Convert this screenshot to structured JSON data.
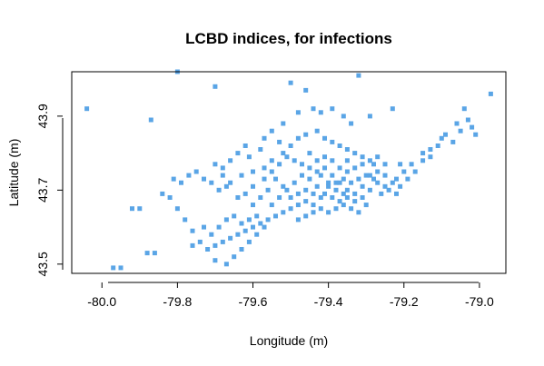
{
  "chart_data": {
    "type": "scatter",
    "title": "LCBD indices, for infections",
    "xlabel": "Longitude (m)",
    "ylabel": "Latitude (m)",
    "xlim": [
      -80.08,
      -78.93
    ],
    "ylim": [
      43.475,
      44.02
    ],
    "x_ticks": [
      -80.0,
      -79.8,
      -79.6,
      -79.4,
      -79.2,
      -79.0
    ],
    "x_tick_labels": [
      "-80.0",
      "-79.8",
      "-79.6",
      "-79.4",
      "-79.2",
      "-79.0"
    ],
    "y_ticks": [
      43.5,
      43.7,
      43.9
    ],
    "y_tick_labels": [
      "43.5",
      "43.7",
      "43.9"
    ],
    "marker": "square",
    "color": "#5aa5e6",
    "grid": false,
    "points": [
      [
        -79.8,
        44.02
      ],
      [
        -79.46,
        43.97
      ],
      [
        -79.5,
        43.99
      ],
      [
        -79.32,
        44.01
      ],
      [
        -79.7,
        43.98
      ],
      [
        -80.04,
        43.92
      ],
      [
        -79.87,
        43.89
      ],
      [
        -79.52,
        43.88
      ],
      [
        -79.48,
        43.91
      ],
      [
        -79.44,
        43.92
      ],
      [
        -79.42,
        43.91
      ],
      [
        -79.39,
        43.92
      ],
      [
        -79.36,
        43.9
      ],
      [
        -79.34,
        43.88
      ],
      [
        -79.29,
        43.9
      ],
      [
        -79.23,
        43.92
      ],
      [
        -79.04,
        43.92
      ],
      [
        -79.03,
        43.89
      ],
      [
        -79.02,
        43.87
      ],
      [
        -79.01,
        43.85
      ],
      [
        -78.97,
        43.96
      ],
      [
        -79.09,
        43.85
      ],
      [
        -79.1,
        43.84
      ],
      [
        -79.13,
        43.81
      ],
      [
        -79.15,
        43.8
      ],
      [
        -79.18,
        43.77
      ],
      [
        -79.2,
        43.75
      ],
      [
        -79.22,
        43.73
      ],
      [
        -79.21,
        43.77
      ],
      [
        -79.25,
        43.77
      ],
      [
        -79.27,
        43.75
      ],
      [
        -79.29,
        43.74
      ],
      [
        -79.28,
        43.77
      ],
      [
        -79.31,
        43.79
      ],
      [
        -79.33,
        43.8
      ],
      [
        -79.35,
        43.81
      ],
      [
        -79.37,
        43.82
      ],
      [
        -79.39,
        43.83
      ],
      [
        -79.41,
        43.84
      ],
      [
        -79.43,
        43.86
      ],
      [
        -79.46,
        43.85
      ],
      [
        -79.48,
        43.84
      ],
      [
        -79.5,
        43.82
      ],
      [
        -79.52,
        43.8
      ],
      [
        -79.55,
        43.78
      ],
      [
        -79.57,
        43.76
      ],
      [
        -79.6,
        43.75
      ],
      [
        -79.63,
        43.74
      ],
      [
        -79.66,
        43.72
      ],
      [
        -79.61,
        43.79
      ],
      [
        -79.58,
        43.81
      ],
      [
        -79.53,
        43.83
      ],
      [
        -79.45,
        43.8
      ],
      [
        -79.43,
        43.78
      ],
      [
        -79.41,
        43.76
      ],
      [
        -79.39,
        43.74
      ],
      [
        -79.37,
        43.72
      ],
      [
        -79.35,
        43.7
      ],
      [
        -79.33,
        43.69
      ],
      [
        -79.31,
        43.71
      ],
      [
        -79.29,
        43.7
      ],
      [
        -79.27,
        43.72
      ],
      [
        -79.25,
        43.71
      ],
      [
        -79.3,
        43.66
      ],
      [
        -79.32,
        43.64
      ],
      [
        -79.34,
        43.65
      ],
      [
        -79.36,
        43.66
      ],
      [
        -79.38,
        43.65
      ],
      [
        -79.4,
        43.64
      ],
      [
        -79.42,
        43.65
      ],
      [
        -79.44,
        43.66
      ],
      [
        -79.46,
        43.67
      ],
      [
        -79.48,
        43.66
      ],
      [
        -79.5,
        43.65
      ],
      [
        -79.52,
        43.64
      ],
      [
        -79.54,
        43.63
      ],
      [
        -79.56,
        43.62
      ],
      [
        -79.58,
        43.61
      ],
      [
        -79.6,
        43.6
      ],
      [
        -79.62,
        43.59
      ],
      [
        -79.64,
        43.58
      ],
      [
        -79.66,
        43.57
      ],
      [
        -79.68,
        43.56
      ],
      [
        -79.7,
        43.55
      ],
      [
        -79.72,
        43.54
      ],
      [
        -79.74,
        43.56
      ],
      [
        -79.76,
        43.55
      ],
      [
        -79.7,
        43.51
      ],
      [
        -79.67,
        43.5
      ],
      [
        -79.65,
        43.52
      ],
      [
        -79.63,
        43.54
      ],
      [
        -79.61,
        43.56
      ],
      [
        -79.59,
        43.58
      ],
      [
        -79.57,
        43.6
      ],
      [
        -79.55,
        43.66
      ],
      [
        -79.53,
        43.68
      ],
      [
        -79.51,
        43.7
      ],
      [
        -79.49,
        43.72
      ],
      [
        -79.47,
        43.74
      ],
      [
        -79.45,
        43.73
      ],
      [
        -79.43,
        43.71
      ],
      [
        -79.41,
        43.69
      ],
      [
        -79.39,
        43.68
      ],
      [
        -79.37,
        43.67
      ],
      [
        -79.35,
        43.68
      ],
      [
        -79.33,
        43.67
      ],
      [
        -79.31,
        43.68
      ],
      [
        -79.42,
        43.74
      ],
      [
        -79.4,
        43.72
      ],
      [
        -79.38,
        43.7
      ],
      [
        -79.36,
        43.69
      ],
      [
        -79.34,
        43.72
      ],
      [
        -79.32,
        43.73
      ],
      [
        -79.3,
        43.74
      ],
      [
        -79.28,
        43.73
      ],
      [
        -79.26,
        43.69
      ],
      [
        -79.24,
        43.7
      ],
      [
        -79.22,
        43.69
      ],
      [
        -79.46,
        43.7
      ],
      [
        -79.44,
        43.69
      ],
      [
        -79.48,
        43.69
      ],
      [
        -79.5,
        43.68
      ],
      [
        -79.52,
        43.71
      ],
      [
        -79.54,
        43.73
      ],
      [
        -79.56,
        43.7
      ],
      [
        -79.58,
        43.68
      ],
      [
        -79.6,
        43.66
      ],
      [
        -79.62,
        43.69
      ],
      [
        -79.64,
        43.68
      ],
      [
        -79.6,
        43.71
      ],
      [
        -79.57,
        43.73
      ],
      [
        -79.55,
        43.75
      ],
      [
        -79.53,
        43.77
      ],
      [
        -79.51,
        43.79
      ],
      [
        -79.49,
        43.78
      ],
      [
        -79.47,
        43.77
      ],
      [
        -79.45,
        43.76
      ],
      [
        -79.43,
        43.75
      ],
      [
        -79.41,
        43.79
      ],
      [
        -79.39,
        43.78
      ],
      [
        -79.37,
        43.76
      ],
      [
        -79.35,
        43.75
      ],
      [
        -79.33,
        43.76
      ],
      [
        -79.31,
        43.77
      ],
      [
        -79.29,
        43.78
      ],
      [
        -79.27,
        43.79
      ],
      [
        -79.35,
        43.78
      ],
      [
        -79.36,
        43.73
      ],
      [
        -79.38,
        43.72
      ],
      [
        -79.4,
        43.71
      ],
      [
        -79.42,
        43.68
      ],
      [
        -79.44,
        43.64
      ],
      [
        -79.46,
        43.63
      ],
      [
        -79.48,
        43.62
      ],
      [
        -79.59,
        43.63
      ],
      [
        -79.61,
        43.62
      ],
      [
        -79.63,
        43.61
      ],
      [
        -79.65,
        43.63
      ],
      [
        -79.67,
        43.62
      ],
      [
        -79.69,
        43.6
      ],
      [
        -79.71,
        43.58
      ],
      [
        -79.73,
        43.6
      ],
      [
        -79.76,
        43.59
      ],
      [
        -79.78,
        43.62
      ],
      [
        -79.8,
        43.65
      ],
      [
        -79.82,
        43.68
      ],
      [
        -79.84,
        43.69
      ],
      [
        -79.79,
        43.72
      ],
      [
        -79.77,
        43.74
      ],
      [
        -79.75,
        43.75
      ],
      [
        -79.73,
        43.73
      ],
      [
        -79.71,
        43.72
      ],
      [
        -79.69,
        43.7
      ],
      [
        -79.67,
        43.71
      ],
      [
        -79.81,
        43.73
      ],
      [
        -79.9,
        43.65
      ],
      [
        -79.92,
        43.65
      ],
      [
        -79.86,
        43.53
      ],
      [
        -79.88,
        43.53
      ],
      [
        -79.95,
        43.49
      ],
      [
        -79.97,
        43.49
      ],
      [
        -79.68,
        43.74
      ],
      [
        -79.55,
        43.86
      ],
      [
        -79.57,
        43.84
      ],
      [
        -79.62,
        43.82
      ],
      [
        -79.64,
        43.8
      ],
      [
        -79.66,
        43.78
      ],
      [
        -79.68,
        43.76
      ],
      [
        -79.7,
        43.77
      ],
      [
        -79.25,
        43.74
      ],
      [
        -79.23,
        43.72
      ],
      [
        -79.21,
        43.71
      ],
      [
        -79.19,
        43.73
      ],
      [
        -79.17,
        43.75
      ],
      [
        -79.15,
        43.78
      ],
      [
        -79.13,
        43.79
      ],
      [
        -79.11,
        43.82
      ],
      [
        -79.07,
        43.83
      ],
      [
        -79.05,
        43.86
      ],
      [
        -79.06,
        43.88
      ]
    ]
  }
}
